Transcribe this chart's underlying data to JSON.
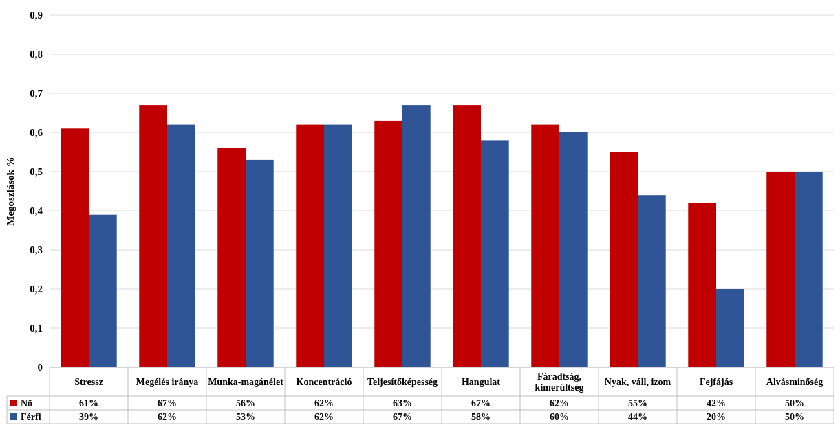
{
  "chart_data": {
    "type": "bar",
    "ylabel": "Megoszlások %",
    "categories": [
      "Stressz",
      "Megélés iránya",
      "Munka-magánélet",
      "Koncentráció",
      "Teljesítőképesség",
      "Hangulat",
      "Fáradtság, kimerültség",
      "Nyak, váll, izom",
      "Fejfájás",
      "Alvásminőség"
    ],
    "series": [
      {
        "name": "Nő",
        "color": "#c00000",
        "values": [
          0.61,
          0.67,
          0.56,
          0.62,
          0.63,
          0.67,
          0.62,
          0.55,
          0.42,
          0.5
        ],
        "value_labels": [
          "61%",
          "67%",
          "56%",
          "62%",
          "63%",
          "67%",
          "62%",
          "55%",
          "42%",
          "50%"
        ]
      },
      {
        "name": "Férfi",
        "color": "#2f5597",
        "values": [
          0.39,
          0.62,
          0.53,
          0.62,
          0.67,
          0.58,
          0.6,
          0.44,
          0.2,
          0.5
        ],
        "value_labels": [
          "39%",
          "62%",
          "53%",
          "62%",
          "67%",
          "58%",
          "60%",
          "44%",
          "20%",
          "50%"
        ]
      }
    ],
    "ylim": [
      0,
      0.9
    ],
    "yticks": [
      0,
      {
        "value": 0.1,
        "label": "0,1"
      },
      {
        "value": 0.2,
        "label": "0,2"
      },
      {
        "value": 0.3,
        "label": "0,3"
      },
      {
        "value": 0.4,
        "label": "0,4"
      },
      {
        "value": 0.5,
        "label": "0,5"
      },
      {
        "value": 0.6,
        "label": "0,6"
      },
      {
        "value": 0.7,
        "label": "0,7"
      },
      {
        "value": 0.8,
        "label": "0,8"
      },
      {
        "value": 0.9,
        "label": "0,9"
      }
    ],
    "grid": "y",
    "legend": "bottom"
  }
}
